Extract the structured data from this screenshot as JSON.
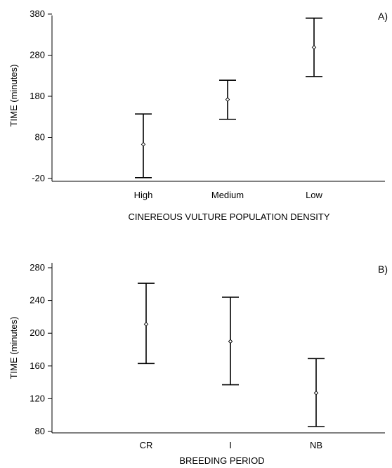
{
  "chart_data": [
    {
      "type": "errorbar",
      "panel_label": "A)",
      "xlabel": "CINEREOUS VULTURE POPULATION DENSITY",
      "ylabel": "TIME (minutes)",
      "yticks": [
        -20,
        80,
        180,
        280,
        380
      ],
      "ylim": [
        -20,
        380
      ],
      "categories": [
        "High",
        "Medium",
        "Low"
      ],
      "values": [
        63,
        172,
        299
      ],
      "lower": [
        -18,
        124,
        228
      ],
      "upper": [
        137,
        219,
        370
      ],
      "grid": false
    },
    {
      "type": "errorbar",
      "panel_label": "B)",
      "xlabel": "BREEDING PERIOD",
      "ylabel": "TIME (minutes)",
      "yticks": [
        80,
        120,
        160,
        200,
        240,
        280
      ],
      "ylim": [
        80,
        280
      ],
      "categories": [
        "CR",
        "I",
        "NB"
      ],
      "values": [
        211,
        190,
        127
      ],
      "lower": [
        163,
        137,
        86
      ],
      "upper": [
        261,
        244,
        169
      ],
      "grid": false
    }
  ]
}
